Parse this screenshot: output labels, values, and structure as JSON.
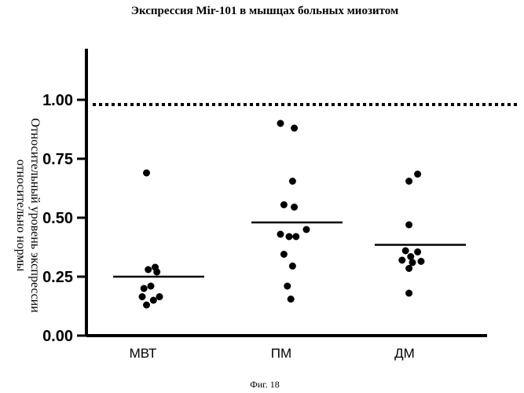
{
  "chart_data": {
    "type": "scatter",
    "title": "Экспрессия  Mir-101 в мышцах больных миозитом",
    "ylabel_lines": [
      "Относительный уровень экспрессии",
      "относительно нормы"
    ],
    "xlabel": "",
    "categories": [
      "МВТ",
      "ПМ",
      "ДМ"
    ],
    "ylim": [
      0,
      1.25
    ],
    "yticks": [
      "0.00",
      "0.25",
      "0.50",
      "0.75",
      "1.00"
    ],
    "ytick_values": [
      0,
      0.25,
      0.5,
      0.75,
      1.0
    ],
    "grid": false,
    "reference_line": {
      "value": 0.98,
      "style": "dotted"
    },
    "series": [
      {
        "category": "МВТ",
        "points": [
          [
            -0.05,
            0.69
          ],
          [
            0.05,
            0.29
          ],
          [
            -0.03,
            0.28
          ],
          [
            0.07,
            0.27
          ],
          [
            0.0,
            0.21
          ],
          [
            -0.08,
            0.2
          ],
          [
            -0.1,
            0.165
          ],
          [
            0.1,
            0.165
          ],
          [
            0.03,
            0.15
          ],
          [
            -0.05,
            0.13
          ]
        ],
        "mean": 0.25
      },
      {
        "category": "ПМ",
        "points": [
          [
            -0.1,
            0.9
          ],
          [
            0.06,
            0.88
          ],
          [
            0.04,
            0.655
          ],
          [
            -0.06,
            0.555
          ],
          [
            0.06,
            0.545
          ],
          [
            0.2,
            0.45
          ],
          [
            -0.1,
            0.43
          ],
          [
            0.0,
            0.42
          ],
          [
            0.08,
            0.42
          ],
          [
            -0.06,
            0.345
          ],
          [
            0.04,
            0.295
          ],
          [
            -0.02,
            0.21
          ],
          [
            0.02,
            0.155
          ]
        ],
        "mean": 0.48
      },
      {
        "category": "ДМ",
        "points": [
          [
            0.06,
            0.685
          ],
          [
            -0.04,
            0.655
          ],
          [
            -0.04,
            0.47
          ],
          [
            -0.08,
            0.36
          ],
          [
            0.06,
            0.355
          ],
          [
            -0.02,
            0.335
          ],
          [
            -0.12,
            0.32
          ],
          [
            0.0,
            0.31
          ],
          [
            0.1,
            0.315
          ],
          [
            -0.04,
            0.285
          ],
          [
            -0.04,
            0.18
          ]
        ],
        "mean": 0.385
      }
    ]
  },
  "caption": "Фиг. 18"
}
